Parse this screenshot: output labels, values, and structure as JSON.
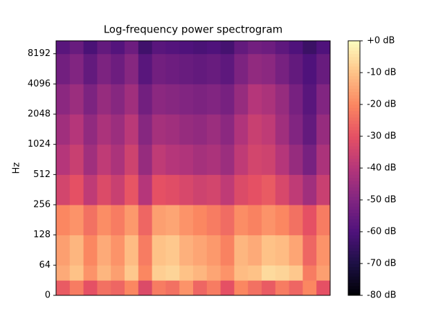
{
  "chart_data": {
    "type": "spectrogram",
    "title": "Log-frequency power spectrogram",
    "y_label": "Hz",
    "yscale": "symlog",
    "linthresh": 64,
    "ylim": [
      0,
      11025
    ],
    "yticks": [
      0,
      64,
      128,
      256,
      512,
      1024,
      2048,
      4096,
      8192
    ],
    "y_edges": [
      0,
      32,
      64,
      128,
      256,
      512,
      1024,
      2048,
      4096,
      8192,
      11025
    ],
    "colormap": "magma",
    "clim": [
      -80,
      0
    ],
    "cticks": [
      {
        "value": 0,
        "label": "+0 dB"
      },
      {
        "value": -10,
        "label": "-10 dB"
      },
      {
        "value": -20,
        "label": "-20 dB"
      },
      {
        "value": -30,
        "label": "-30 dB"
      },
      {
        "value": -40,
        "label": "-40 dB"
      },
      {
        "value": -50,
        "label": "-50 dB"
      },
      {
        "value": -60,
        "label": "-60 dB"
      },
      {
        "value": -70,
        "label": "-70 dB"
      },
      {
        "value": -80,
        "label": "-80 dB"
      }
    ],
    "z": [
      [
        -28,
        -22,
        -30,
        -24,
        -26,
        -20,
        -32,
        -22,
        -24,
        -18,
        -26,
        -22,
        -30,
        -20,
        -24,
        -28,
        -22,
        -26,
        -20,
        -30
      ],
      [
        -14,
        -10,
        -18,
        -12,
        -16,
        -9,
        -20,
        -8,
        -7,
        -10,
        -12,
        -15,
        -18,
        -11,
        -10,
        -6,
        -7,
        -9,
        -22,
        -16
      ],
      [
        -16,
        -12,
        -20,
        -14,
        -18,
        -11,
        -22,
        -10,
        -9,
        -13,
        -15,
        -17,
        -21,
        -12,
        -14,
        -10,
        -11,
        -15,
        -26,
        -18
      ],
      [
        -20,
        -18,
        -24,
        -19,
        -22,
        -17,
        -26,
        -16,
        -15,
        -18,
        -20,
        -22,
        -25,
        -19,
        -21,
        -18,
        -20,
        -24,
        -30,
        -22
      ],
      [
        -34,
        -30,
        -38,
        -32,
        -36,
        -29,
        -40,
        -30,
        -31,
        -33,
        -35,
        -34,
        -38,
        -32,
        -30,
        -28,
        -33,
        -38,
        -44,
        -36
      ],
      [
        -40,
        -36,
        -44,
        -38,
        -42,
        -35,
        -46,
        -38,
        -40,
        -41,
        -43,
        -42,
        -45,
        -38,
        -34,
        -35,
        -40,
        -46,
        -52,
        -42
      ],
      [
        -44,
        -40,
        -47,
        -42,
        -45,
        -39,
        -49,
        -43,
        -44,
        -46,
        -47,
        -45,
        -48,
        -41,
        -36,
        -38,
        -44,
        -50,
        -56,
        -46
      ],
      [
        -48,
        -45,
        -51,
        -46,
        -49,
        -44,
        -53,
        -48,
        -49,
        -50,
        -51,
        -50,
        -52,
        -46,
        -40,
        -42,
        -46,
        -52,
        -58,
        -50
      ],
      [
        -53,
        -50,
        -56,
        -51,
        -54,
        -49,
        -58,
        -53,
        -54,
        -55,
        -56,
        -55,
        -57,
        -51,
        -47,
        -48,
        -52,
        -56,
        -60,
        -55
      ],
      [
        -58,
        -55,
        -61,
        -56,
        -59,
        -54,
        -63,
        -58,
        -59,
        -60,
        -61,
        -60,
        -62,
        -56,
        -53,
        -54,
        -57,
        -60,
        -64,
        -60
      ]
    ]
  }
}
